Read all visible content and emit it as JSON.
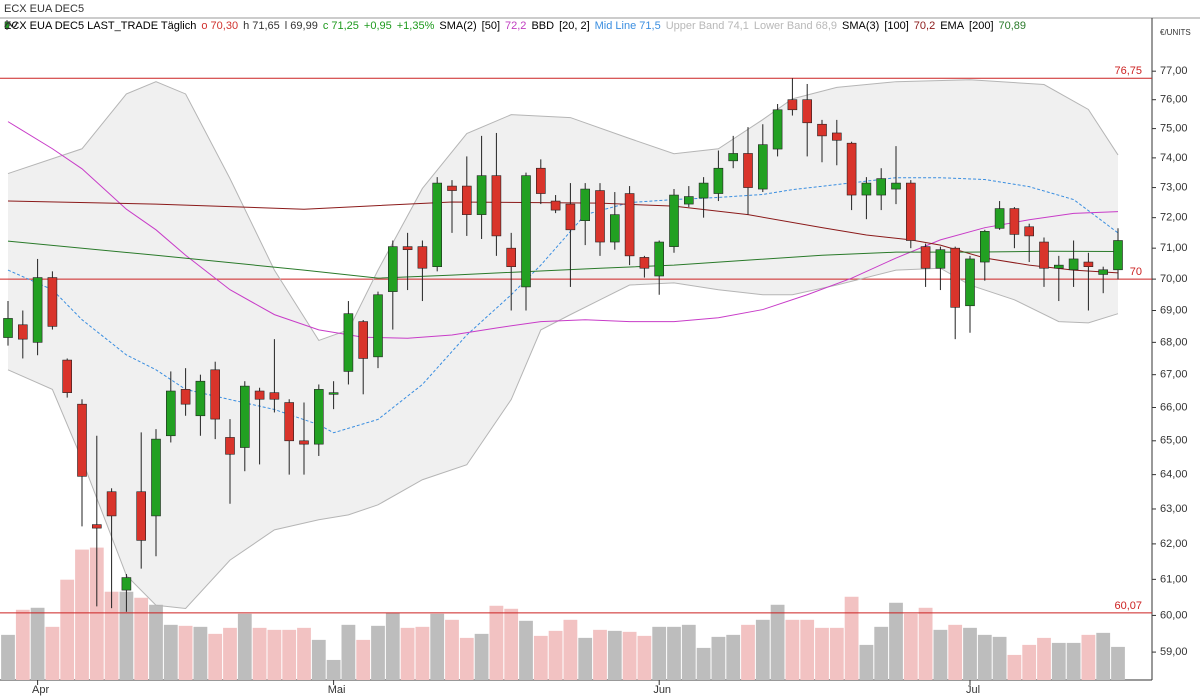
{
  "chart_data": {
    "type": "candlestick",
    "title": "ECX EUA DEC5",
    "unit_label": "€/UNITS",
    "legend_items": [
      {
        "text": "ECX EUA DEC5 LAST_TRADE Täglich",
        "color": "#000000",
        "icon": "candle"
      },
      {
        "text": "o 70,30",
        "color": "#d0312d"
      },
      {
        "text": "h 71,65",
        "color": "#333333"
      },
      {
        "text": "l 69,99",
        "color": "#333333"
      },
      {
        "text": "c 71,25",
        "color": "#1e9a1e"
      },
      {
        "text": "+0,95",
        "color": "#1e9a1e"
      },
      {
        "text": "+1,35%",
        "color": "#1e9a1e"
      },
      {
        "text": "SMA(2)",
        "color": "#000000",
        "icon": "wave"
      },
      {
        "text": "[50]",
        "color": "#000000"
      },
      {
        "text": "72,2",
        "color": "#c03cc0"
      },
      {
        "text": "BBD",
        "color": "#000000",
        "icon": "wave"
      },
      {
        "text": "[20, 2]",
        "color": "#000000"
      },
      {
        "text": "Mid Line 71,5",
        "color": "#3a8ee0"
      },
      {
        "text": "Upper Band 74,1",
        "color": "#b8b8b8"
      },
      {
        "text": "Lower Band 68,9",
        "color": "#b8b8b8"
      },
      {
        "text": "SMA(3)",
        "color": "#000000",
        "icon": "wave"
      },
      {
        "text": "[100]",
        "color": "#000000"
      },
      {
        "text": "70,2",
        "color": "#8b1a1a"
      },
      {
        "text": "EMA",
        "color": "#000000",
        "icon": "wave"
      },
      {
        "text": "[200]",
        "color": "#000000"
      },
      {
        "text": "70,89",
        "color": "#2a7a2a"
      }
    ],
    "categories": [
      null,
      null,
      "Apr",
      null,
      null,
      null,
      null,
      null,
      null,
      null,
      null,
      null,
      null,
      null,
      null,
      null,
      null,
      null,
      null,
      null,
      null,
      null,
      "Mai",
      null,
      null,
      null,
      null,
      null,
      null,
      null,
      null,
      null,
      null,
      null,
      null,
      null,
      null,
      null,
      null,
      null,
      null,
      null,
      null,
      null,
      "Jun",
      null,
      null,
      null,
      null,
      null,
      null,
      null,
      null,
      null,
      null,
      null,
      null,
      null,
      null,
      null,
      null,
      null,
      null,
      null,
      null,
      "Jul",
      null,
      null,
      null,
      null,
      null,
      null,
      null,
      null,
      null,
      null
    ],
    "open": [
      68.15,
      68.55,
      68.0,
      70.05,
      67.45,
      66.1,
      62.55,
      63.5,
      60.7,
      63.5,
      62.8,
      65.15,
      66.55,
      65.75,
      67.15,
      65.1,
      64.8,
      66.5,
      66.45,
      66.15,
      65.0,
      64.9,
      66.4,
      67.1,
      68.65,
      67.55,
      69.6,
      71.05,
      71.05,
      70.4,
      73.05,
      73.05,
      72.1,
      73.4,
      71.0,
      69.75,
      73.65,
      72.55,
      72.45,
      71.9,
      72.9,
      71.2,
      72.8,
      70.7,
      70.1,
      71.05,
      72.45,
      72.65,
      72.8,
      73.9,
      74.15,
      72.95,
      74.3,
      76.0,
      76.0,
      75.15,
      74.85,
      74.5,
      72.75,
      72.75,
      72.95,
      73.15,
      71.05,
      70.35,
      71.0,
      69.15,
      70.55,
      71.65,
      72.3,
      71.7,
      71.2,
      70.35,
      70.3,
      70.55,
      70.15,
      70.3
    ],
    "high": [
      69.3,
      69.0,
      70.65,
      70.25,
      67.5,
      66.25,
      65.15,
      63.6,
      61.15,
      65.25,
      65.35,
      67.1,
      67.2,
      67.0,
      67.4,
      65.65,
      66.8,
      66.6,
      68.1,
      66.25,
      66.15,
      66.7,
      66.8,
      69.3,
      68.7,
      69.6,
      71.25,
      71.5,
      71.25,
      73.35,
      73.25,
      74.05,
      74.75,
      74.85,
      71.5,
      73.5,
      73.95,
      72.75,
      73.15,
      73.15,
      73.15,
      72.85,
      73.05,
      70.75,
      71.25,
      72.95,
      73.05,
      73.35,
      74.25,
      74.75,
      75.05,
      75.15,
      75.85,
      76.75,
      76.55,
      75.3,
      75.3,
      74.55,
      73.35,
      73.65,
      74.4,
      73.25,
      71.15,
      71.05,
      71.05,
      70.75,
      71.6,
      72.55,
      72.35,
      71.8,
      71.35,
      70.75,
      71.25,
      70.85,
      70.4,
      71.65
    ],
    "low": [
      67.9,
      67.5,
      67.6,
      68.4,
      66.3,
      62.5,
      60.25,
      60.2,
      60.1,
      61.3,
      61.65,
      64.95,
      65.75,
      65.15,
      65.05,
      63.15,
      64.1,
      64.3,
      65.85,
      64.0,
      64.0,
      64.55,
      65.95,
      66.7,
      66.4,
      67.2,
      68.4,
      69.65,
      69.3,
      70.25,
      71.5,
      71.4,
      71.3,
      70.75,
      69.0,
      69.0,
      72.45,
      72.15,
      69.75,
      71.1,
      70.75,
      70.95,
      70.45,
      70.05,
      69.5,
      70.85,
      72.35,
      72.0,
      72.55,
      73.65,
      72.1,
      72.85,
      74.05,
      75.45,
      74.05,
      73.85,
      73.75,
      72.25,
      71.95,
      72.25,
      72.45,
      71.0,
      69.75,
      69.65,
      68.1,
      68.3,
      69.95,
      71.6,
      71.0,
      70.55,
      69.75,
      69.3,
      69.75,
      69.0,
      69.55,
      69.99
    ],
    "close": [
      68.75,
      68.1,
      70.05,
      68.5,
      66.45,
      63.95,
      62.45,
      62.8,
      61.05,
      62.1,
      65.05,
      66.5,
      66.1,
      66.8,
      65.65,
      64.6,
      66.65,
      66.25,
      66.25,
      65.0,
      64.9,
      66.55,
      66.45,
      68.9,
      67.5,
      69.5,
      71.05,
      70.95,
      70.35,
      73.15,
      72.9,
      72.1,
      73.4,
      71.4,
      70.4,
      73.4,
      72.8,
      72.25,
      71.6,
      72.95,
      71.2,
      72.1,
      70.75,
      70.35,
      71.2,
      72.75,
      72.7,
      73.15,
      73.65,
      74.15,
      73.0,
      74.45,
      75.65,
      75.65,
      75.2,
      74.75,
      74.6,
      72.75,
      73.15,
      73.3,
      73.15,
      71.25,
      70.35,
      70.95,
      69.1,
      70.65,
      71.55,
      72.3,
      71.45,
      71.4,
      70.35,
      70.45,
      70.65,
      70.4,
      70.3,
      71.25
    ],
    "volume": [
      45,
      70,
      72,
      53,
      100,
      130,
      132,
      88,
      88,
      82,
      75,
      55,
      54,
      53,
      46,
      52,
      66,
      52,
      50,
      50,
      52,
      40,
      20,
      55,
      40,
      54,
      67,
      52,
      53,
      66,
      60,
      42,
      46,
      74,
      71,
      59,
      44,
      49,
      60,
      42,
      50,
      49,
      48,
      44,
      53,
      53,
      55,
      32,
      43,
      45,
      55,
      60,
      75,
      60,
      60,
      52,
      52,
      83,
      35,
      53,
      77,
      66,
      72,
      50,
      55,
      52,
      45,
      43,
      25,
      35,
      42,
      37,
      37,
      45,
      47,
      33
    ],
    "up_color": "#22a022",
    "down_color": "#d9342b",
    "wick_color": "#222222",
    "volume_up_color": "#bdbdbd",
    "volume_down_color": "#f2c2c2",
    "band_fill": "#f0f0f0",
    "series": [
      {
        "role": "upper",
        "color": "#b5b5b5",
        "x": [
          0,
          5,
          8,
          10,
          12,
          15,
          18,
          21,
          23,
          25,
          28,
          31,
          34,
          38,
          42,
          45,
          48,
          51,
          53,
          56,
          60,
          65,
          70,
          73,
          75
        ],
        "values": [
          73.47,
          74.31,
          76.2,
          76.63,
          76.2,
          73.3,
          70.29,
          68.06,
          68.39,
          70.29,
          72.97,
          74.83,
          75.48,
          75.38,
          74.66,
          74.14,
          74.31,
          75.31,
          76.03,
          76.43,
          76.63,
          76.7,
          76.53,
          75.66,
          74.1
        ]
      },
      {
        "role": "lower",
        "color": "#b5b5b5",
        "x": [
          0,
          3,
          5,
          8,
          10,
          12,
          15,
          18,
          21,
          23,
          25,
          28,
          31,
          34,
          36,
          38,
          40,
          42,
          45,
          48,
          51,
          53,
          56,
          60,
          63,
          65,
          68,
          71,
          73,
          75
        ],
        "values": [
          67.15,
          66.55,
          64.44,
          61.11,
          60.28,
          60.19,
          61.54,
          62.4,
          62.69,
          62.83,
          63.12,
          63.85,
          64.29,
          66.24,
          68.39,
          68.87,
          69.34,
          69.81,
          69.88,
          69.66,
          69.5,
          69.5,
          69.81,
          70.29,
          70.35,
          69.81,
          69.34,
          68.65,
          68.61,
          68.9
        ]
      },
      {
        "role": "line",
        "dash": true,
        "color": "#3a8ee0",
        "x": [
          0,
          3,
          5,
          8,
          10,
          12,
          15,
          18,
          21,
          22,
          25,
          28,
          31,
          34,
          36,
          39,
          42,
          45,
          48,
          51,
          53,
          56,
          60,
          63,
          66,
          69,
          72,
          75
        ],
        "values": [
          70.29,
          69.66,
          68.71,
          67.61,
          67.15,
          66.55,
          66.24,
          65.94,
          65.48,
          65.24,
          65.64,
          66.7,
          68.23,
          69.5,
          70.45,
          72.1,
          72.5,
          72.6,
          72.67,
          72.77,
          72.93,
          73.1,
          73.33,
          73.33,
          73.27,
          73.03,
          72.6,
          71.5
        ]
      },
      {
        "role": "line",
        "color": "#c83cc8",
        "x": [
          0,
          3,
          5,
          8,
          10,
          12,
          15,
          18,
          21,
          24,
          27,
          30,
          33,
          36,
          39,
          42,
          45,
          48,
          51,
          54,
          57,
          60,
          63,
          66,
          69,
          72,
          75
        ],
        "values": [
          75.24,
          74.31,
          73.63,
          72.28,
          71.6,
          70.77,
          69.66,
          68.87,
          68.39,
          68.16,
          68.13,
          68.23,
          68.45,
          68.65,
          68.71,
          68.65,
          68.65,
          68.77,
          69.03,
          69.5,
          70.03,
          70.68,
          71.27,
          71.67,
          71.93,
          72.14,
          72.2
        ]
      },
      {
        "role": "line",
        "color": "#8b1a1a",
        "x": [
          0,
          10,
          20,
          30,
          40,
          45,
          50,
          55,
          58,
          61,
          63,
          66,
          69,
          72,
          75
        ],
        "values": [
          72.55,
          72.45,
          72.28,
          72.52,
          72.48,
          72.38,
          72.1,
          71.67,
          71.43,
          71.27,
          71.1,
          70.68,
          70.45,
          70.29,
          70.2
        ]
      },
      {
        "role": "line",
        "color": "#2a7a2a",
        "x": [
          0,
          10,
          20,
          25,
          30,
          40,
          45,
          50,
          55,
          60,
          65,
          70,
          75
        ],
        "values": [
          71.23,
          70.77,
          70.29,
          70.03,
          70.13,
          70.35,
          70.45,
          70.61,
          70.77,
          70.87,
          70.87,
          70.9,
          70.89
        ]
      }
    ],
    "hlines": [
      {
        "value": 76.75,
        "label": "76,75",
        "color": "#cc2222"
      },
      {
        "value": 70,
        "label": "70",
        "color": "#cc2222"
      },
      {
        "value": 60.07,
        "label": "60,07",
        "color": "#cc2222"
      }
    ],
    "log_scale": true,
    "grid": false,
    "ylim": [
      58.25,
      78.9
    ],
    "yticks": [
      {
        "value": 59,
        "label": "59,00"
      },
      {
        "value": 60,
        "label": "60,00"
      },
      {
        "value": 61,
        "label": "61,00"
      },
      {
        "value": 62,
        "label": "62,00"
      },
      {
        "value": 63,
        "label": "63,00"
      },
      {
        "value": 64,
        "label": "64,00"
      },
      {
        "value": 65,
        "label": "65,00"
      },
      {
        "value": 66,
        "label": "66,00"
      },
      {
        "value": 67,
        "label": "67,00"
      },
      {
        "value": 68,
        "label": "68,00"
      },
      {
        "value": 69,
        "label": "69,00"
      },
      {
        "value": 70,
        "label": "70,00"
      },
      {
        "value": 71,
        "label": "71,00"
      },
      {
        "value": 72,
        "label": "72,00"
      },
      {
        "value": 73,
        "label": "73,00"
      },
      {
        "value": 74,
        "label": "74,00"
      },
      {
        "value": 75,
        "label": "75,00"
      },
      {
        "value": 76,
        "label": "76,00"
      },
      {
        "value": 77,
        "label": "77,00"
      }
    ]
  }
}
